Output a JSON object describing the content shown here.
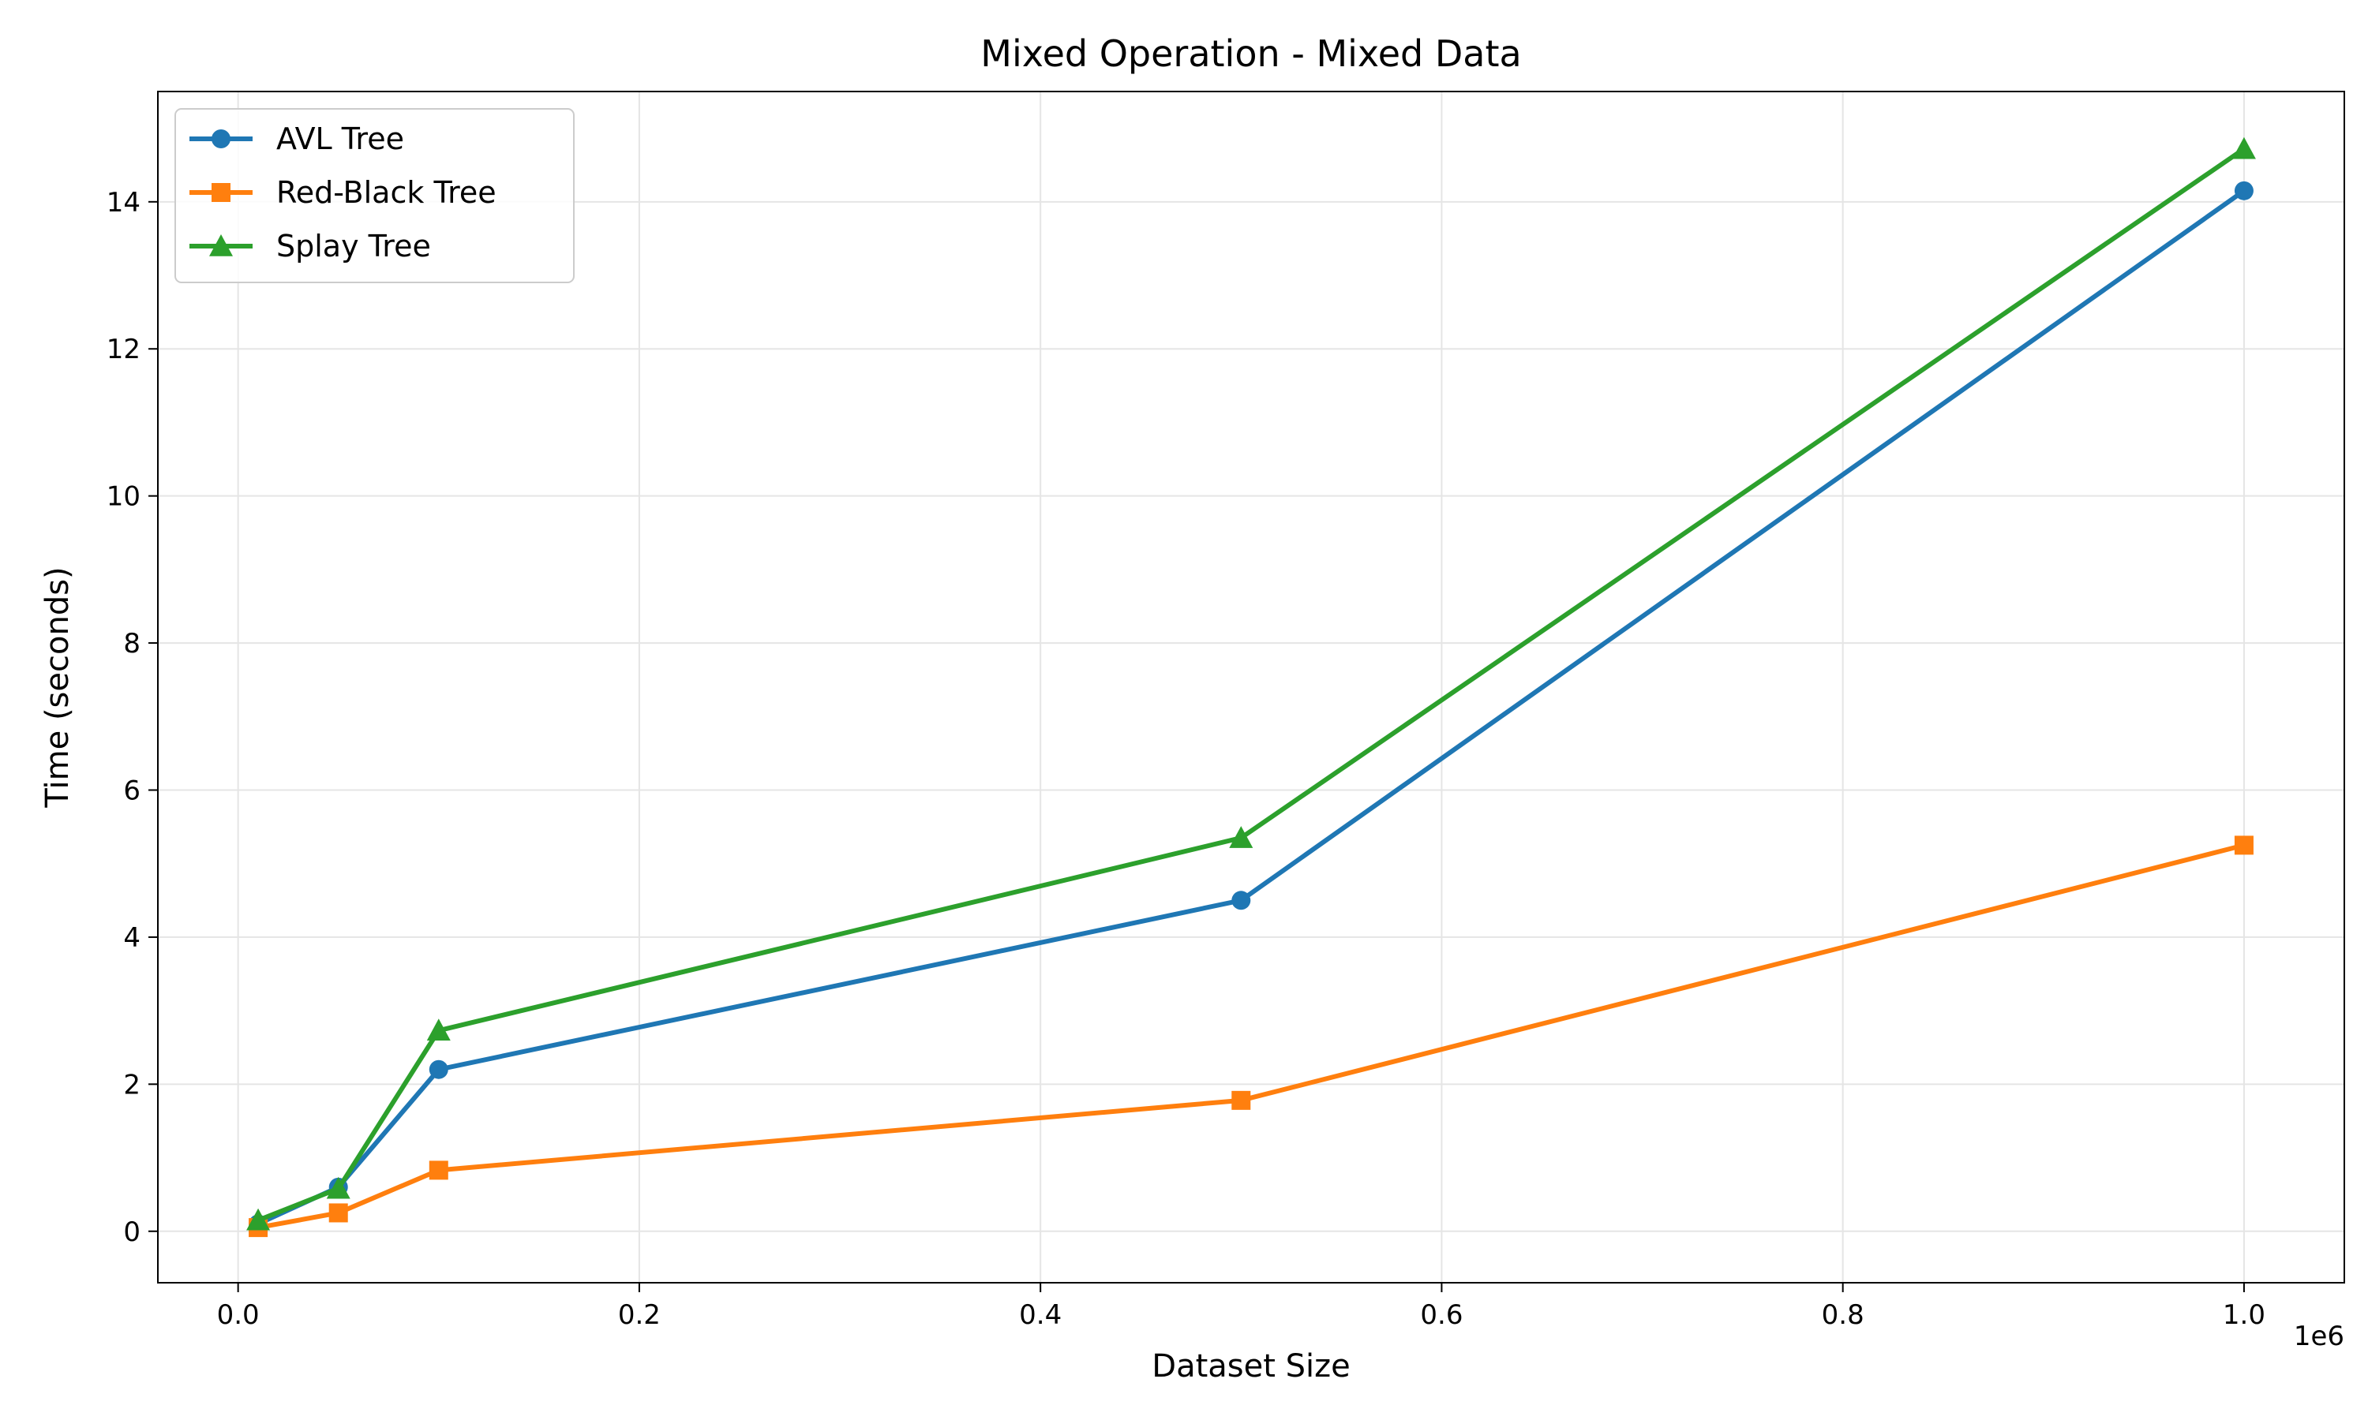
{
  "chart_data": {
    "type": "line",
    "title": "Mixed Operation - Mixed Data",
    "xlabel": "Dataset Size",
    "ylabel": "Time (seconds)",
    "x_offset_label": "1e6",
    "xlim": [
      -0.04,
      1.05
    ],
    "ylim": [
      -0.7,
      15.5
    ],
    "xticks": [
      0.0,
      0.2,
      0.4,
      0.6,
      0.8,
      1.0
    ],
    "xtick_labels": [
      "0.0",
      "0.2",
      "0.4",
      "0.6",
      "0.8",
      "1.0"
    ],
    "yticks": [
      0,
      2,
      4,
      6,
      8,
      10,
      12,
      14
    ],
    "ytick_labels": [
      "0",
      "2",
      "4",
      "6",
      "8",
      "10",
      "12",
      "14"
    ],
    "grid": true,
    "legend_position": "top-left",
    "x": [
      10000,
      50000,
      100000,
      500000,
      1000000
    ],
    "series": [
      {
        "name": "AVL Tree",
        "color": "#1f77b4",
        "marker": "circle",
        "values": [
          0.1,
          0.6,
          2.2,
          4.5,
          14.15
        ]
      },
      {
        "name": "Red-Black Tree",
        "color": "#ff7f0e",
        "marker": "square",
        "values": [
          0.05,
          0.25,
          0.83,
          1.78,
          5.25
        ]
      },
      {
        "name": "Splay Tree",
        "color": "#2ca02c",
        "marker": "triangle",
        "values": [
          0.15,
          0.58,
          2.73,
          5.35,
          14.72
        ]
      }
    ]
  }
}
